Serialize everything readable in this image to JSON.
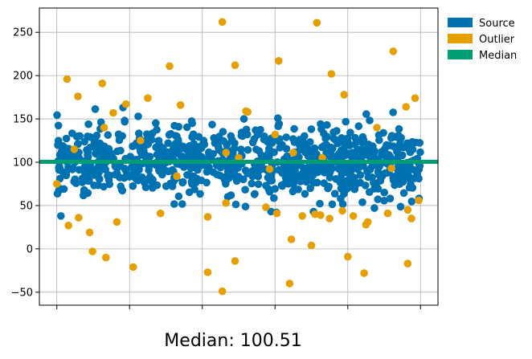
{
  "chart_data": {
    "type": "scatter",
    "title": "",
    "xlabel": "",
    "ylabel": "",
    "caption": "Median: 100.51",
    "xlim": [
      -48,
      1048
    ],
    "ylim": [
      -65,
      278
    ],
    "x_ticks": [
      0,
      200,
      400,
      600,
      800,
      1000
    ],
    "x_tick_labels": [
      "",
      "",
      "",
      "",
      "",
      ""
    ],
    "y_ticks": [
      -50,
      0,
      50,
      100,
      150,
      200,
      250
    ],
    "y_tick_labels": [
      "−50",
      "0",
      "50",
      "100",
      "150",
      "200",
      "250"
    ],
    "grid": true,
    "legend_position": "outside-top-right",
    "median": 100.51,
    "series": [
      {
        "name": "Source",
        "color": "#0072B2",
        "generated": true,
        "count": 900,
        "x_range": [
          0,
          1000
        ],
        "center": 100,
        "spread": 20,
        "clip": [
          38,
          170
        ]
      },
      {
        "name": "Outlier",
        "color": "#E69F00",
        "points": [
          [
            28,
            196
          ],
          [
            58,
            176
          ],
          [
            125,
            191
          ],
          [
            155,
            157
          ],
          [
            190,
            167
          ],
          [
            250,
            174
          ],
          [
            310,
            211
          ],
          [
            340,
            166
          ],
          [
            455,
            262
          ],
          [
            490,
            212
          ],
          [
            520,
            159
          ],
          [
            610,
            217
          ],
          [
            715,
            261
          ],
          [
            755,
            202
          ],
          [
            790,
            178
          ],
          [
            925,
            228
          ],
          [
            960,
            164
          ],
          [
            985,
            174
          ],
          [
            32,
            27
          ],
          [
            60,
            36
          ],
          [
            90,
            19
          ],
          [
            98,
            -3
          ],
          [
            135,
            -10
          ],
          [
            165,
            31
          ],
          [
            210,
            -21
          ],
          [
            285,
            41
          ],
          [
            415,
            37
          ],
          [
            465,
            53
          ],
          [
            415,
            -27
          ],
          [
            455,
            -49
          ],
          [
            490,
            -14
          ],
          [
            575,
            48
          ],
          [
            605,
            41
          ],
          [
            640,
            -40
          ],
          [
            645,
            11
          ],
          [
            675,
            38
          ],
          [
            700,
            4
          ],
          [
            710,
            40
          ],
          [
            725,
            39
          ],
          [
            750,
            35
          ],
          [
            785,
            44
          ],
          [
            800,
            -9
          ],
          [
            815,
            38
          ],
          [
            845,
            -28
          ],
          [
            850,
            28
          ],
          [
            855,
            31
          ],
          [
            910,
            41
          ],
          [
            965,
            -17
          ],
          [
            975,
            35
          ],
          [
            995,
            56
          ],
          [
            0,
            75
          ],
          [
            48,
            115
          ],
          [
            130,
            140
          ],
          [
            230,
            125
          ],
          [
            330,
            84
          ],
          [
            465,
            111
          ],
          [
            500,
            105
          ],
          [
            525,
            158
          ],
          [
            585,
            92
          ],
          [
            600,
            132
          ],
          [
            650,
            111
          ],
          [
            730,
            105
          ],
          [
            880,
            140
          ],
          [
            920,
            93
          ],
          [
            965,
            45
          ]
        ]
      },
      {
        "name": "Median",
        "color": "#009E73",
        "type": "hline",
        "y": 100.51
      }
    ]
  }
}
